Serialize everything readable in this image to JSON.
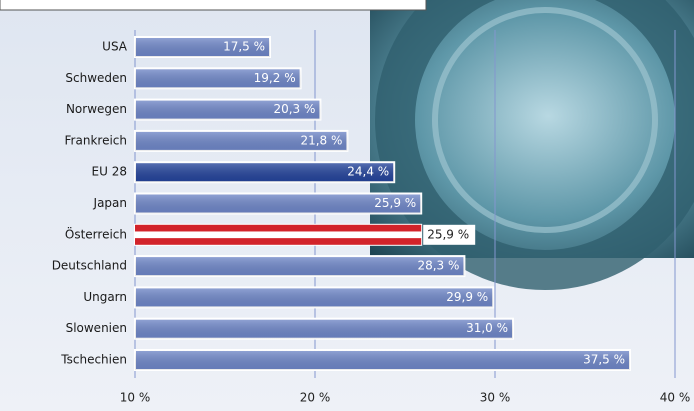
{
  "chart_data": {
    "type": "hbar",
    "categories": [
      "USA",
      "Schweden",
      "Norwegen",
      "Frankreich",
      "EU 28",
      "Japan",
      "Österreich",
      "Deutschland",
      "Ungarn",
      "Slowenien",
      "Tschechien"
    ],
    "values": [
      17.5,
      19.2,
      20.3,
      21.8,
      24.4,
      25.9,
      25.9,
      28.3,
      29.9,
      31.0,
      37.5
    ],
    "value_labels": [
      "17,5 %",
      "19,2 %",
      "20,3 %",
      "21,8 %",
      "24,4 %",
      "25,9 %",
      "25,9 %",
      "28,3 %",
      "29,9 %",
      "31,0 %",
      "37,5 %"
    ],
    "colors": [
      "#6f87c9",
      "#6f87c9",
      "#6f87c9",
      "#6f87c9",
      "#24449c",
      "#6f87c9",
      "#d2232a",
      "#6f87c9",
      "#6f87c9",
      "#6f87c9",
      "#6f87c9"
    ],
    "striped": [
      false,
      false,
      false,
      false,
      false,
      false,
      true,
      false,
      false,
      false,
      false
    ],
    "xlim": [
      10,
      40
    ],
    "xticks": [
      {
        "value": 10,
        "label": "10 %"
      },
      {
        "value": 20,
        "label": "20 %"
      },
      {
        "value": 30,
        "label": "30 %"
      },
      {
        "value": 40,
        "label": "40 %"
      }
    ],
    "grid": true
  }
}
